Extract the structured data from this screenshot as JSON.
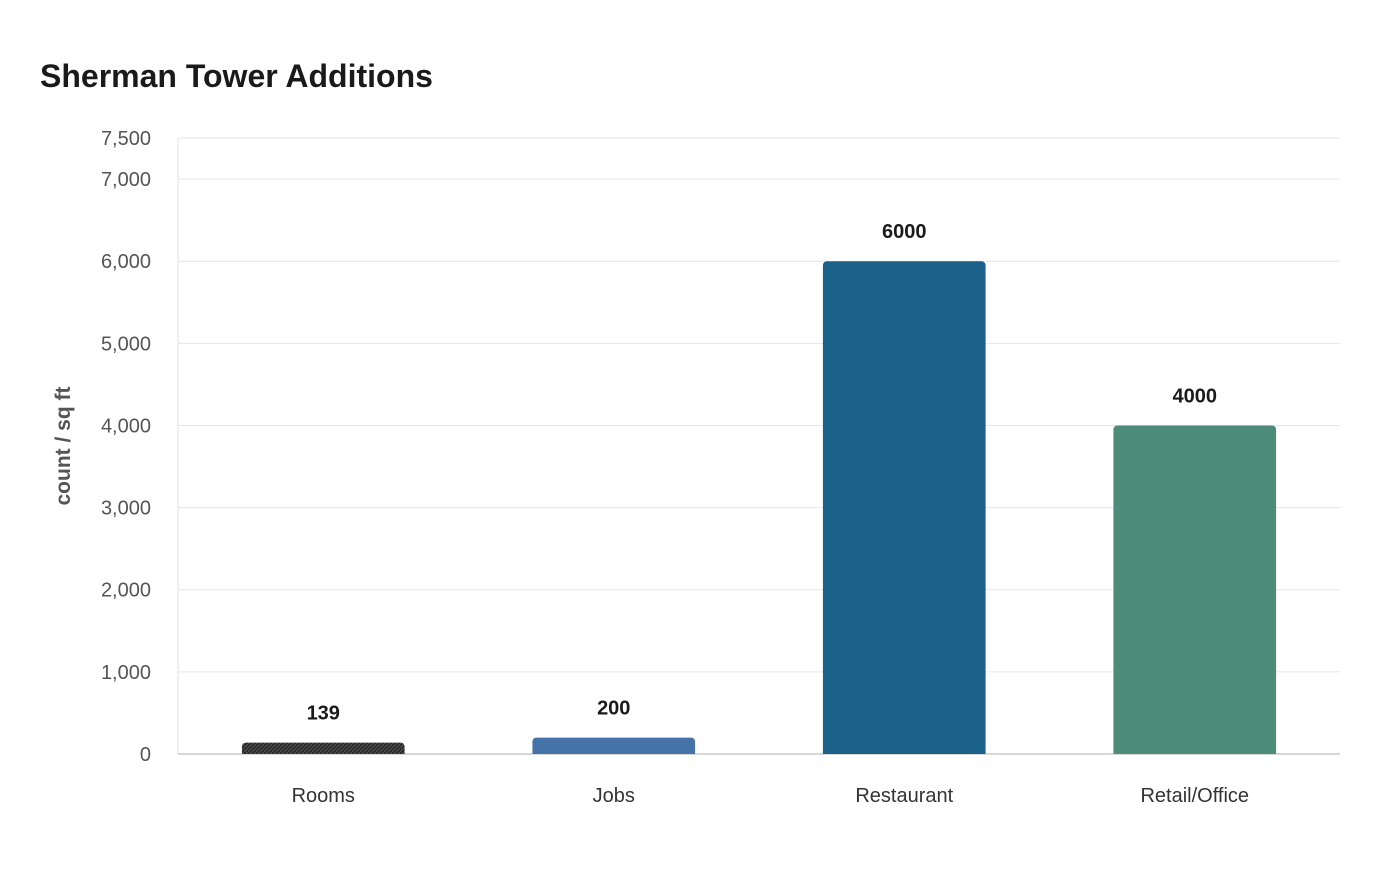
{
  "chart_data": {
    "type": "bar",
    "title": "Sherman Tower Additions",
    "xlabel": "",
    "ylabel": "count / sq ft",
    "categories": [
      "Rooms",
      "Jobs",
      "Restaurant",
      "Retail/Office"
    ],
    "values": [
      139,
      200,
      6000,
      4000
    ],
    "value_labels": [
      "139",
      "200",
      "6000",
      "4000"
    ],
    "colors": [
      "#2b2b2b",
      "#4572a7",
      "#1a6289",
      "#4e8c7a"
    ],
    "ylim": [
      0,
      7500
    ],
    "yticks": [
      0,
      1000,
      2000,
      3000,
      4000,
      5000,
      6000,
      7000,
      7500
    ],
    "ytick_labels": [
      "0",
      "1,000",
      "2,000",
      "3,000",
      "4,000",
      "5,000",
      "6,000",
      "7,000",
      "7,500"
    ],
    "grid": true,
    "legend": "none"
  }
}
